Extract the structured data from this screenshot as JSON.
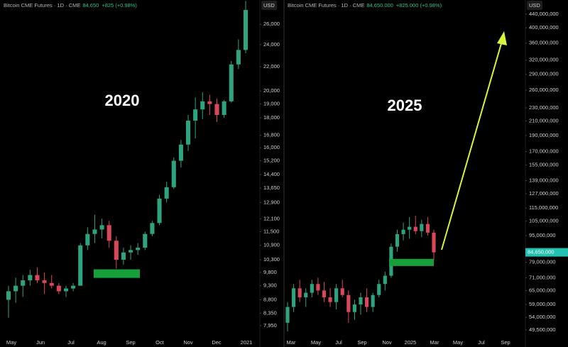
{
  "chart_data": [
    {
      "type": "candlestick",
      "header": {
        "title": "Bitcoin CME Futures · 1D · CME",
        "price": "84,650",
        "change": "+825 (+0.98%)"
      },
      "currency": "USD",
      "annotation": "2020",
      "log_scale": true,
      "up_color": "#2fa37f",
      "down_color": "#d9475a",
      "zone_color": "#17a03a",
      "ylim": [
        7600,
        28600
      ],
      "yticks": [
        {
          "value": 26000,
          "label": "26,000"
        },
        {
          "value": 24000,
          "label": "24,000"
        },
        {
          "value": 22000,
          "label": "22,000"
        },
        {
          "value": 20000,
          "label": "20,000"
        },
        {
          "value": 19000,
          "label": "19,000"
        },
        {
          "value": 18000,
          "label": "18,000"
        },
        {
          "value": 16800,
          "label": "16,800"
        },
        {
          "value": 16000,
          "label": "16,000"
        },
        {
          "value": 15200,
          "label": "15,200"
        },
        {
          "value": 14400,
          "label": "14,400"
        },
        {
          "value": 13650,
          "label": "13,650"
        },
        {
          "value": 12900,
          "label": "12,900"
        },
        {
          "value": 12100,
          "label": "12,100"
        },
        {
          "value": 11500,
          "label": "11,500"
        },
        {
          "value": 10900,
          "label": "10,900"
        },
        {
          "value": 10300,
          "label": "10,300"
        },
        {
          "value": 9800,
          "label": "9,800"
        },
        {
          "value": 9300,
          "label": "9,300"
        },
        {
          "value": 8800,
          "label": "8,800"
        },
        {
          "value": 8350,
          "label": "8,350"
        },
        {
          "value": 7950,
          "label": "7,950"
        }
      ],
      "xtick_labels": [
        "May",
        "Jun",
        "Jul",
        "Aug",
        "Sep",
        "Oct",
        "Nov",
        "Dec",
        "2021"
      ],
      "zone": [
        9590,
        9920
      ],
      "open": [
        8800,
        9100,
        9300,
        9500,
        9700,
        9500,
        9400,
        9300,
        9100,
        9200,
        9300,
        10900,
        11400,
        11600,
        11800,
        11100,
        10300,
        10600,
        10700,
        10800,
        11400,
        11900,
        13100,
        13700,
        15200,
        16200,
        17800,
        18600,
        19200,
        19000,
        18200,
        19200,
        22200,
        23500
      ],
      "high": [
        9300,
        9600,
        9700,
        9900,
        10000,
        9800,
        9700,
        9400,
        9300,
        9400,
        11000,
        11700,
        12300,
        12100,
        12000,
        11300,
        10800,
        10900,
        11000,
        11500,
        12000,
        13300,
        14000,
        15400,
        16500,
        18200,
        19500,
        19900,
        19700,
        19400,
        19300,
        22500,
        24500,
        28500
      ],
      "low": [
        8200,
        8700,
        8900,
        9300,
        9400,
        9000,
        9200,
        9000,
        8900,
        9100,
        9300,
        10700,
        11000,
        11200,
        10800,
        9950,
        10100,
        10300,
        10500,
        10700,
        11300,
        11800,
        12900,
        13600,
        14800,
        15800,
        16600,
        17900,
        18200,
        17700,
        18000,
        19100,
        21800,
        23200
      ],
      "close": [
        9100,
        9300,
        9500,
        9700,
        9500,
        9400,
        9300,
        9100,
        9200,
        9300,
        10900,
        11400,
        11600,
        11800,
        11100,
        10300,
        10600,
        10700,
        10800,
        11400,
        11900,
        13100,
        13700,
        15200,
        16200,
        17800,
        18600,
        19200,
        19000,
        18200,
        19200,
        22200,
        23500,
        27500
      ]
    },
    {
      "type": "candlestick",
      "header": {
        "title": "Bitcoin CME Futures · 1D · CME",
        "price": "84,650.000",
        "change": "+825.000 (+0.98%)"
      },
      "currency": "USD",
      "annotation": "2025",
      "log_scale": true,
      "up_color": "#2fa37f",
      "down_color": "#d9475a",
      "zone_color": "#17a03a",
      "ylim": [
        47100000,
        485000000
      ],
      "yticks": [
        {
          "value": 440000000,
          "label": "440,000,000"
        },
        {
          "value": 400000000,
          "label": "400,000,000"
        },
        {
          "value": 360000000,
          "label": "360,000,000"
        },
        {
          "value": 320000000,
          "label": "320,000,000"
        },
        {
          "value": 290000000,
          "label": "290,000,000"
        },
        {
          "value": 260000000,
          "label": "260,000,000"
        },
        {
          "value": 230000000,
          "label": "230,000,000"
        },
        {
          "value": 210000000,
          "label": "210,000,000"
        },
        {
          "value": 190000000,
          "label": "190,000,000"
        },
        {
          "value": 170000000,
          "label": "170,000,000"
        },
        {
          "value": 155000000,
          "label": "155,000,000"
        },
        {
          "value": 139000000,
          "label": "139,000,000"
        },
        {
          "value": 127000000,
          "label": "127,000,000"
        },
        {
          "value": 115000000,
          "label": "115,000,000"
        },
        {
          "value": 105000000,
          "label": "105,000,000"
        },
        {
          "value": 95000000,
          "label": "95,000,000"
        },
        {
          "value": 79000000,
          "label": "79,000,000"
        },
        {
          "value": 71000000,
          "label": "71,000,000"
        },
        {
          "value": 65000000,
          "label": "65,000,000"
        },
        {
          "value": 59000000,
          "label": "59,000,000"
        },
        {
          "value": 54000000,
          "label": "54,000,000"
        },
        {
          "value": 49500000,
          "label": "49,500,000"
        }
      ],
      "xtick_labels": [
        "Mar",
        "May",
        "Jul",
        "Sep",
        "Nov",
        "2025",
        "Mar",
        "May",
        "Jul",
        "Sep"
      ],
      "zone": [
        77000000,
        80900000
      ],
      "last_price": {
        "value": 84650000,
        "label": "84,650,000"
      },
      "open": [
        52000000,
        58000000,
        66000000,
        62000000,
        64000000,
        68000000,
        65000000,
        62000000,
        60000000,
        66000000,
        63000000,
        56000000,
        59000000,
        62000000,
        58000000,
        63000000,
        68000000,
        72000000,
        88000000,
        96000000,
        99000000,
        101000000,
        98000000,
        103000000,
        97000000
      ],
      "high": [
        60000000,
        68000000,
        70000000,
        66000000,
        70000000,
        71000000,
        69000000,
        66000000,
        68000000,
        70000000,
        65000000,
        61000000,
        64000000,
        66000000,
        64000000,
        70000000,
        74000000,
        90000000,
        99000000,
        104000000,
        108000000,
        109000000,
        106000000,
        108000000,
        99000000
      ],
      "low": [
        49000000,
        56000000,
        60000000,
        58000000,
        62000000,
        63000000,
        60000000,
        58000000,
        57000000,
        62000000,
        52000000,
        53000000,
        55000000,
        56000000,
        56000000,
        62000000,
        65000000,
        71000000,
        85000000,
        92000000,
        93000000,
        96000000,
        94000000,
        95000000,
        80000000
      ],
      "close": [
        58000000,
        66000000,
        62000000,
        64000000,
        68000000,
        65000000,
        62000000,
        60000000,
        66000000,
        63000000,
        56000000,
        59000000,
        62000000,
        58000000,
        63000000,
        68000000,
        72000000,
        88000000,
        96000000,
        99000000,
        101000000,
        98000000,
        103000000,
        97000000,
        84650000
      ]
    }
  ]
}
